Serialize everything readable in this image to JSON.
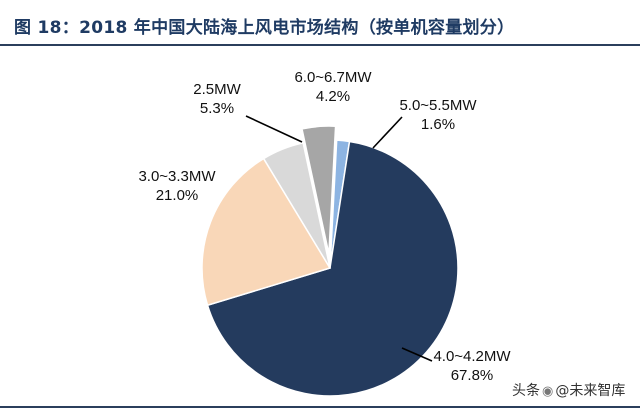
{
  "page": {
    "title": "图 18：2018 年中国大陆海上风电市场结构（按单机容量划分）",
    "watermark_prefix": "头条",
    "watermark_handle": "@未来智库"
  },
  "chart_data": {
    "type": "pie",
    "title": "图 18：2018 年中国大陆海上风电市场结构（按单机容量划分）",
    "start_angle_deg": 3,
    "exploded": [
      "6.0~6.7MW"
    ],
    "slices": [
      {
        "label": "5.0~5.5MW",
        "percent_text": "1.6%",
        "value": 1.6,
        "color": "#8db4e2"
      },
      {
        "label": "4.0~4.2MW",
        "percent_text": "67.8%",
        "value": 67.8,
        "color": "#243b5e"
      },
      {
        "label": "3.0~3.3MW",
        "percent_text": "21.0%",
        "value": 21.0,
        "color": "#f9d7b8"
      },
      {
        "label": "2.5MW",
        "percent_text": "5.3%",
        "value": 5.3,
        "color": "#d9d9d9"
      },
      {
        "label": "6.0~6.7MW",
        "percent_text": "4.2%",
        "value": 4.2,
        "color": "#a6a6a6"
      }
    ]
  }
}
